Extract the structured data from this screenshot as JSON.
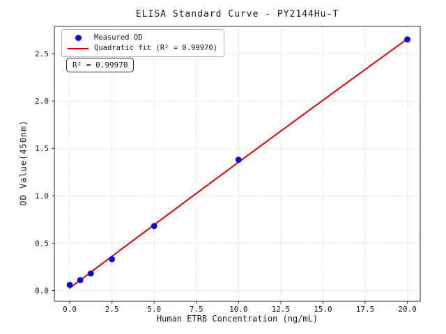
{
  "chart_data": {
    "type": "scatter",
    "title": "ELISA Standard Curve - PY2144Hu-T",
    "xlabel": "Human ETRB Concentration (ng/mL)",
    "ylabel": "OD Value(450nm)",
    "xlim": [
      -0.91,
      20.76
    ],
    "ylim": [
      -0.114,
      2.787
    ],
    "grid": true,
    "grid_style": "dotted",
    "xticks": {
      "values": [
        0,
        2.5,
        5,
        7.5,
        10,
        12.5,
        15,
        17.5,
        20
      ],
      "labels": [
        "0.0",
        "2.5",
        "5.0",
        "7.5",
        "10.0",
        "12.5",
        "15.0",
        "17.5",
        "20.0"
      ]
    },
    "yticks": {
      "values": [
        0,
        0.5,
        1,
        1.5,
        2,
        2.5
      ],
      "labels": [
        "0.0",
        "0.5",
        "1.0",
        "1.5",
        "2.0",
        "2.5"
      ]
    },
    "series": [
      {
        "name": "Measured OD",
        "type": "scatter",
        "color": "#0404dc",
        "x": [
          0,
          0.625,
          1.25,
          2.5,
          5,
          10,
          20
        ],
        "y": [
          0.06,
          0.11,
          0.18,
          0.33,
          0.68,
          1.38,
          2.65
        ]
      },
      {
        "name": "Quadratic fit (R² = 0.99970)",
        "type": "line",
        "color": "#e00000",
        "fit": "quadratic",
        "fit_of": "Measured OD",
        "r_squared": 0.9997
      }
    ],
    "legend_position": "upper left",
    "annotation": {
      "text": "R² = 0.99970",
      "location": "upper left"
    }
  }
}
